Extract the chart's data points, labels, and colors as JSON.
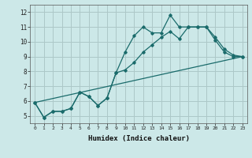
{
  "title": "",
  "xlabel": "Humidex (Indice chaleur)",
  "ylabel": "",
  "background_color": "#cce8e8",
  "grid_color": "#adc8c8",
  "line_color": "#1a6b6b",
  "x_ticks": [
    0,
    1,
    2,
    3,
    4,
    5,
    6,
    7,
    8,
    9,
    10,
    11,
    12,
    13,
    14,
    15,
    16,
    17,
    18,
    19,
    20,
    21,
    22,
    23
  ],
  "y_ticks": [
    5,
    6,
    7,
    8,
    9,
    10,
    11,
    12
  ],
  "ylim": [
    4.5,
    12.5
  ],
  "xlim": [
    -0.5,
    23.5
  ],
  "series1_x": [
    0,
    1,
    2,
    3,
    4,
    5,
    6,
    7,
    8,
    9,
    10,
    11,
    12,
    13,
    14,
    15,
    16,
    17,
    18,
    19,
    20,
    21,
    22,
    23
  ],
  "series1_y": [
    5.9,
    4.9,
    5.3,
    5.3,
    5.5,
    6.6,
    6.3,
    5.7,
    6.2,
    7.9,
    9.3,
    10.4,
    11.0,
    10.6,
    10.6,
    11.8,
    11.0,
    11.0,
    11.0,
    11.0,
    10.1,
    9.3,
    9.0,
    9.0
  ],
  "series2_x": [
    0,
    1,
    2,
    3,
    4,
    5,
    6,
    7,
    8,
    9,
    10,
    11,
    12,
    13,
    14,
    15,
    16,
    17,
    18,
    19,
    20,
    21,
    22,
    23
  ],
  "series2_y": [
    5.9,
    4.9,
    5.3,
    5.3,
    5.5,
    6.6,
    6.3,
    5.7,
    6.2,
    7.9,
    8.1,
    8.6,
    9.3,
    9.8,
    10.3,
    10.7,
    10.2,
    11.0,
    11.0,
    11.0,
    10.3,
    9.5,
    9.1,
    9.0
  ],
  "series3_x": [
    0,
    23
  ],
  "series3_y": [
    5.9,
    9.0
  ]
}
